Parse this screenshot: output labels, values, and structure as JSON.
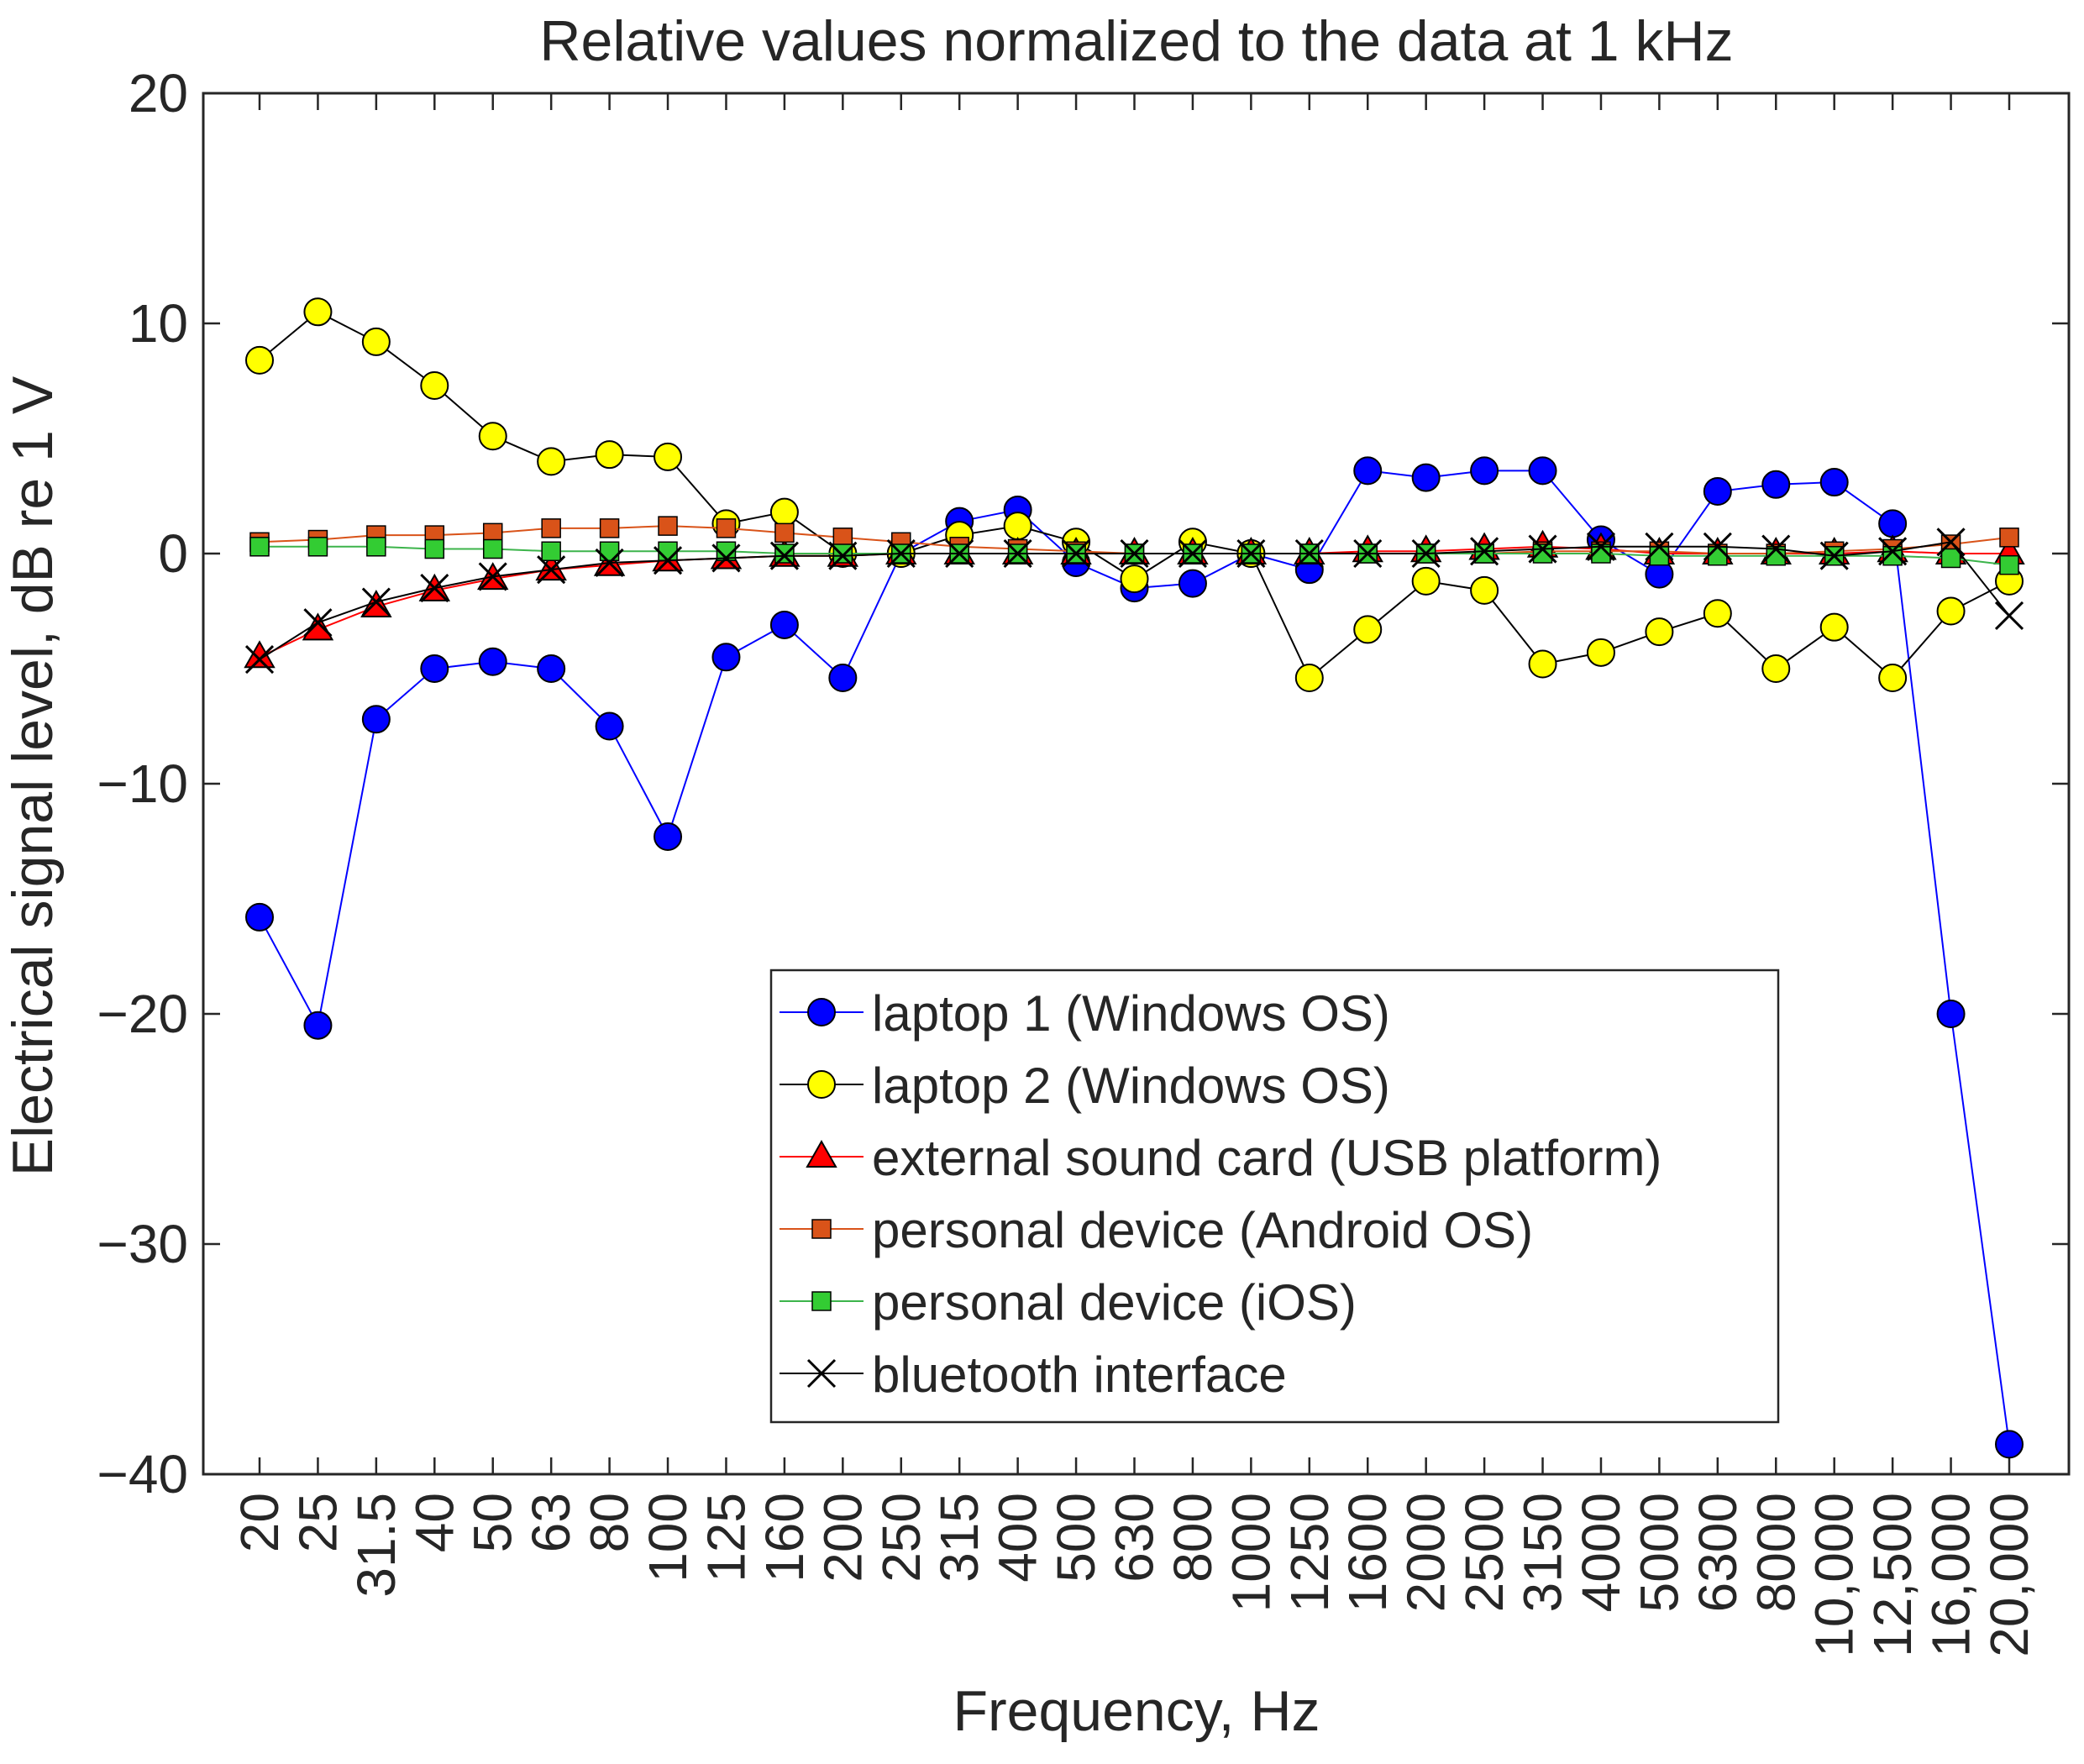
{
  "chart_data": {
    "type": "line",
    "title": "Relative values normalized to the data at 1 kHz",
    "xlabel": "Frequency, Hz",
    "ylabel": "Electrical signal level, dB re 1 V",
    "ylim": [
      -40,
      20
    ],
    "yticks": [
      20,
      10,
      0,
      -10,
      -20,
      -30,
      -40
    ],
    "ytick_labels": [
      "20",
      "10",
      "0",
      "−10",
      "−20",
      "−30",
      "−40"
    ],
    "categories": [
      "20",
      "25",
      "31.5",
      "40",
      "50",
      "63",
      "80",
      "100",
      "125",
      "160",
      "200",
      "250",
      "315",
      "400",
      "500",
      "630",
      "800",
      "1000",
      "1250",
      "1600",
      "2000",
      "2500",
      "3150",
      "4000",
      "5000",
      "6300",
      "8000",
      "10,000",
      "12,500",
      "16,000",
      "20,000"
    ],
    "legend_position": "lower-center",
    "series": [
      {
        "name": "laptop 1 (Windows OS)",
        "marker": "circle",
        "line_color": "#0000ff",
        "marker_fill": "#0000ff",
        "values": [
          -15.8,
          -20.5,
          -7.2,
          -5.0,
          -4.7,
          -5.0,
          -7.5,
          -12.3,
          -4.5,
          -3.1,
          -5.4,
          0.0,
          1.4,
          1.9,
          -0.4,
          -1.5,
          -1.3,
          0.0,
          -0.7,
          3.6,
          3.3,
          3.6,
          3.6,
          0.6,
          -0.9,
          2.7,
          3.0,
          3.1,
          1.3,
          -20.0,
          -38.7
        ]
      },
      {
        "name": "laptop 2 (Windows OS)",
        "marker": "circle",
        "line_color": "#000000",
        "marker_fill": "#ffff00",
        "values": [
          8.4,
          10.5,
          9.2,
          7.3,
          5.1,
          4.0,
          4.3,
          4.2,
          1.3,
          1.8,
          0.0,
          0.0,
          0.8,
          1.2,
          0.5,
          -1.1,
          0.5,
          0.0,
          -5.4,
          -3.3,
          -1.2,
          -1.6,
          -4.8,
          -4.3,
          -3.4,
          -2.6,
          -5.0,
          -3.2,
          -5.4,
          -2.5,
          -1.2
        ]
      },
      {
        "name": "external sound card (USB platform)",
        "marker": "triangle",
        "line_color": "#ff0000",
        "marker_fill": "#ff0000",
        "values": [
          -4.5,
          -3.3,
          -2.3,
          -1.6,
          -1.1,
          -0.7,
          -0.5,
          -0.3,
          -0.2,
          -0.1,
          -0.1,
          0.0,
          0.0,
          0.0,
          0.0,
          0.0,
          0.0,
          0.0,
          0.0,
          0.1,
          0.1,
          0.2,
          0.3,
          0.2,
          0.0,
          0.0,
          0.0,
          0.0,
          0.1,
          0.0,
          0.0
        ]
      },
      {
        "name": "personal device (Android OS)",
        "marker": "square",
        "line_color": "#d95319",
        "marker_fill": "#d95319",
        "values": [
          0.5,
          0.6,
          0.8,
          0.8,
          0.9,
          1.1,
          1.1,
          1.2,
          1.1,
          0.9,
          0.7,
          0.5,
          0.3,
          0.2,
          0.1,
          0.0,
          0.0,
          0.0,
          0.0,
          0.0,
          0.0,
          0.0,
          0.1,
          0.1,
          0.1,
          0.0,
          0.0,
          0.1,
          0.2,
          0.4,
          0.7
        ]
      },
      {
        "name": "personal device (iOS)",
        "marker": "square",
        "line_color": "#3cb44b",
        "marker_fill": "#33cc33",
        "values": [
          0.3,
          0.3,
          0.3,
          0.2,
          0.2,
          0.1,
          0.1,
          0.1,
          0.1,
          0.0,
          0.0,
          0.0,
          0.0,
          0.0,
          0.0,
          0.0,
          0.0,
          0.0,
          0.0,
          0.0,
          0.0,
          0.0,
          0.0,
          0.0,
          -0.1,
          -0.1,
          -0.1,
          -0.1,
          -0.1,
          -0.2,
          -0.5
        ]
      },
      {
        "name": "bluetooth interface",
        "marker": "x",
        "line_color": "#000000",
        "marker_fill": "#000000",
        "values": [
          -4.6,
          -3.0,
          -2.1,
          -1.5,
          -1.0,
          -0.7,
          -0.4,
          -0.3,
          -0.2,
          -0.1,
          -0.1,
          0.0,
          0.0,
          0.0,
          0.0,
          0.0,
          0.0,
          0.0,
          0.0,
          0.0,
          0.0,
          0.1,
          0.2,
          0.3,
          0.3,
          0.3,
          0.2,
          -0.1,
          0.1,
          0.5,
          -2.7
        ]
      }
    ]
  }
}
